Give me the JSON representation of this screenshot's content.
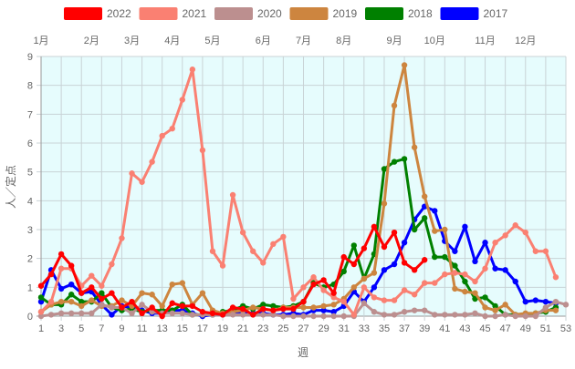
{
  "chart_data": {
    "type": "line",
    "xlabel": "週",
    "ylabel": "人／定点",
    "xlim": [
      1,
      53
    ],
    "ylim": [
      0,
      9
    ],
    "x_ticks": [
      1,
      3,
      5,
      7,
      9,
      11,
      13,
      15,
      17,
      19,
      21,
      23,
      25,
      27,
      29,
      31,
      33,
      35,
      37,
      39,
      41,
      43,
      45,
      47,
      49,
      51,
      53
    ],
    "y_ticks": [
      0,
      1,
      2,
      3,
      4,
      5,
      6,
      7,
      8,
      9
    ],
    "grid": true,
    "plot_background": "#e6fcfd",
    "legend_position": "top",
    "month_labels": [
      {
        "label": "1月",
        "week": 1
      },
      {
        "label": "2月",
        "week": 6
      },
      {
        "label": "3月",
        "week": 10
      },
      {
        "label": "4月",
        "week": 14
      },
      {
        "label": "5月",
        "week": 18
      },
      {
        "label": "6月",
        "week": 23
      },
      {
        "label": "7月",
        "week": 27
      },
      {
        "label": "8月",
        "week": 31
      },
      {
        "label": "9月",
        "week": 36
      },
      {
        "label": "10月",
        "week": 40
      },
      {
        "label": "11月",
        "week": 45
      },
      {
        "label": "12月",
        "week": 49
      }
    ],
    "series": [
      {
        "name": "2022",
        "color": "#ff0000",
        "values": [
          1.05,
          1.45,
          2.15,
          1.75,
          0.8,
          1.0,
          0.6,
          0.8,
          0.3,
          0.5,
          0.1,
          0.3,
          0.0,
          0.45,
          0.35,
          0.35,
          0.15,
          0.1,
          0.05,
          0.3,
          0.25,
          0.05,
          0.25,
          0.2,
          0.25,
          0.25,
          0.5,
          1.1,
          1.25,
          0.8,
          2.05,
          1.8,
          2.35,
          3.1,
          2.4,
          2.9,
          1.85,
          1.6,
          1.95
        ]
      },
      {
        "name": "2021",
        "color": "#fa8072",
        "values": [
          0.15,
          0.5,
          1.65,
          1.65,
          1.05,
          1.4,
          1.05,
          1.8,
          2.7,
          4.95,
          4.65,
          5.35,
          6.25,
          6.5,
          7.5,
          8.55,
          5.75,
          2.25,
          1.75,
          4.2,
          2.9,
          2.25,
          1.85,
          2.5,
          2.75,
          0.6,
          1.0,
          1.35,
          0.9,
          0.65,
          0.5,
          0.05,
          1.0,
          0.65,
          0.55,
          0.55,
          0.9,
          0.75,
          1.15,
          1.15,
          1.45,
          1.5,
          1.45,
          1.2,
          1.65,
          2.55,
          2.8,
          3.15,
          2.9,
          2.25,
          2.25,
          1.35
        ]
      },
      {
        "name": "2020",
        "color": "#bc8f8f",
        "values": [
          0.0,
          0.05,
          0.1,
          0.1,
          0.1,
          0.1,
          0.4,
          0.3,
          0.3,
          0.1,
          0.4,
          0.15,
          0.1,
          0.1,
          0.1,
          0.05,
          0.05,
          0.05,
          0.05,
          0.05,
          0.05,
          0.05,
          0.05,
          0.05,
          0.0,
          0.0,
          0.0,
          0.0,
          0.0,
          0.0,
          0.0,
          0.0,
          0.45,
          0.15,
          0.05,
          0.05,
          0.15,
          0.2,
          0.2,
          0.05,
          0.05,
          0.05,
          0.05,
          0.1,
          0.0,
          0.0,
          0.05,
          0.0,
          0.0,
          0.0,
          0.3,
          0.5,
          0.4
        ]
      },
      {
        "name": "2019",
        "color": "#cd853f",
        "values": [
          0.15,
          0.4,
          0.5,
          0.5,
          0.35,
          0.55,
          0.35,
          0.35,
          0.55,
          0.35,
          0.8,
          0.75,
          0.35,
          1.1,
          1.15,
          0.4,
          0.8,
          0.2,
          0.1,
          0.15,
          0.2,
          0.3,
          0.25,
          0.2,
          0.3,
          0.3,
          0.3,
          0.3,
          0.35,
          0.4,
          0.6,
          1.0,
          1.3,
          1.5,
          3.9,
          7.3,
          8.7,
          5.85,
          4.15,
          2.95,
          3.0,
          0.95,
          0.85,
          0.8,
          0.3,
          0.2,
          0.4,
          0.05,
          0.1,
          0.1,
          0.2,
          0.2
        ]
      },
      {
        "name": "2018",
        "color": "#008000",
        "values": [
          0.65,
          0.4,
          0.4,
          0.75,
          0.5,
          0.5,
          0.8,
          0.3,
          0.2,
          0.25,
          0.15,
          0.2,
          0.2,
          0.2,
          0.4,
          0.05,
          0.05,
          0.05,
          0.15,
          0.2,
          0.35,
          0.25,
          0.4,
          0.35,
          0.3,
          0.35,
          0.5,
          1.15,
          1.0,
          1.1,
          1.55,
          2.45,
          1.3,
          2.15,
          5.1,
          5.35,
          5.45,
          3.0,
          3.4,
          2.05,
          2.05,
          1.75,
          1.2,
          0.6,
          0.65,
          0.35,
          0.05,
          0.05,
          0.05,
          0.1,
          0.15,
          0.3
        ]
      },
      {
        "name": "2017",
        "color": "#0000ff",
        "values": [
          0.5,
          1.6,
          0.95,
          1.1,
          0.8,
          0.85,
          0.4,
          0.05,
          0.35,
          0.3,
          0.2,
          0.1,
          0.1,
          0.2,
          0.2,
          0.1,
          0.0,
          0.05,
          0.05,
          0.1,
          0.1,
          0.1,
          0.1,
          0.05,
          0.05,
          0.1,
          0.05,
          0.2,
          0.2,
          0.15,
          0.35,
          0.85,
          0.5,
          1.0,
          1.6,
          1.8,
          2.55,
          3.35,
          3.8,
          3.65,
          2.6,
          2.25,
          3.1,
          1.9,
          2.55,
          1.65,
          1.6,
          1.2,
          0.5,
          0.55,
          0.5,
          0.45
        ]
      }
    ]
  }
}
